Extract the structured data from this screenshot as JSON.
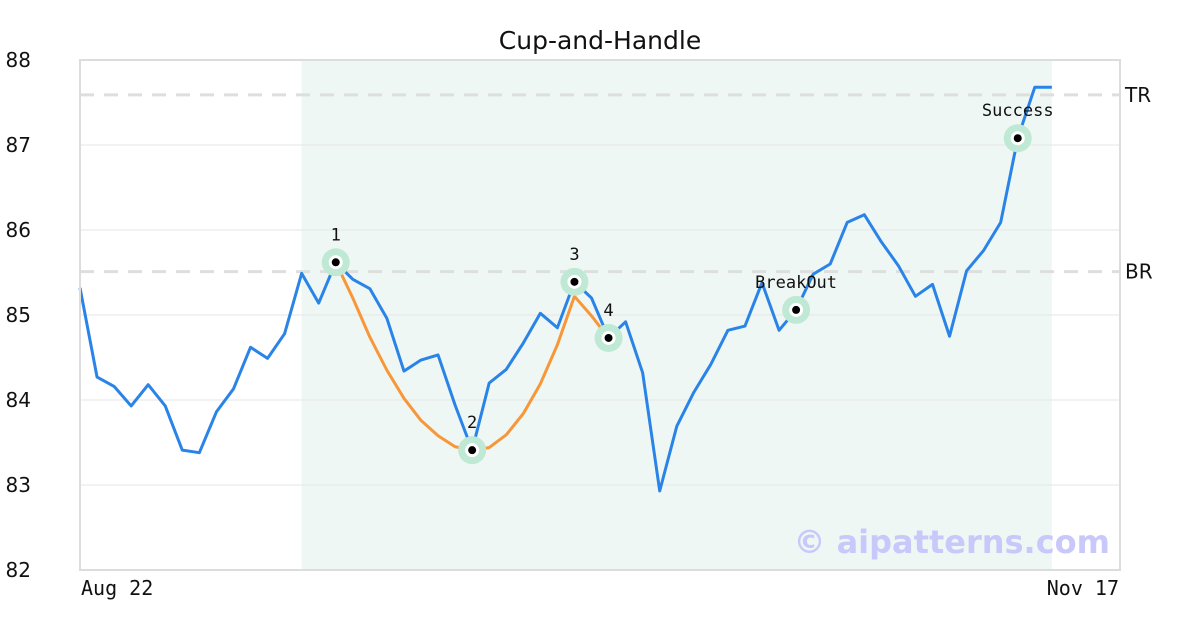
{
  "chart_data": {
    "type": "line",
    "title": "Cup-and-Handle",
    "xlabel": "",
    "ylabel": "",
    "ylim": [
      82,
      88
    ],
    "yticks": [
      "82",
      "83",
      "84",
      "85",
      "86",
      "87",
      "88"
    ],
    "xtick_labels": [
      "Aug 22",
      "Nov 17"
    ],
    "grid": true,
    "series": [
      {
        "role": "price",
        "color": "#2a84e8",
        "values": [
          85.32,
          84.27,
          84.16,
          83.93,
          84.18,
          83.93,
          83.41,
          83.38,
          83.86,
          84.13,
          84.62,
          84.49,
          84.78,
          85.49,
          85.14,
          85.62,
          85.42,
          85.31,
          84.96,
          84.34,
          84.47,
          84.53,
          83.94,
          83.41,
          84.2,
          84.36,
          84.67,
          85.02,
          84.85,
          85.39,
          85.2,
          84.73,
          84.92,
          84.32,
          82.93,
          83.69,
          84.09,
          84.42,
          84.82,
          84.87,
          85.38,
          84.82,
          85.06,
          85.48,
          85.6,
          86.09,
          86.18,
          85.86,
          85.58,
          85.22,
          85.36,
          84.75,
          85.52,
          85.76,
          86.09,
          87.08,
          87.68,
          87.68
        ]
      },
      {
        "role": "cup-fit",
        "color": "#f7973a",
        "start_index": 15,
        "values": [
          85.62,
          85.2,
          84.74,
          84.35,
          84.02,
          83.76,
          83.58,
          83.45,
          83.41,
          83.44,
          83.59,
          83.84,
          84.19,
          84.65,
          85.22,
          84.99,
          84.73
        ]
      }
    ],
    "highlight_range_index": [
      13,
      57
    ],
    "highlight_color": "#eff7f4",
    "levels": [
      {
        "label": "TR",
        "value": 87.59
      },
      {
        "label": "BR",
        "value": 85.51
      }
    ],
    "annotations": [
      {
        "label": "1",
        "index": 15
      },
      {
        "label": "2",
        "index": 23
      },
      {
        "label": "3",
        "index": 29
      },
      {
        "label": "4",
        "index": 31
      },
      {
        "label": "BreakOut",
        "index": 42
      },
      {
        "label": "Success",
        "index": 55
      }
    ],
    "watermark": "© aipatterns.com"
  }
}
